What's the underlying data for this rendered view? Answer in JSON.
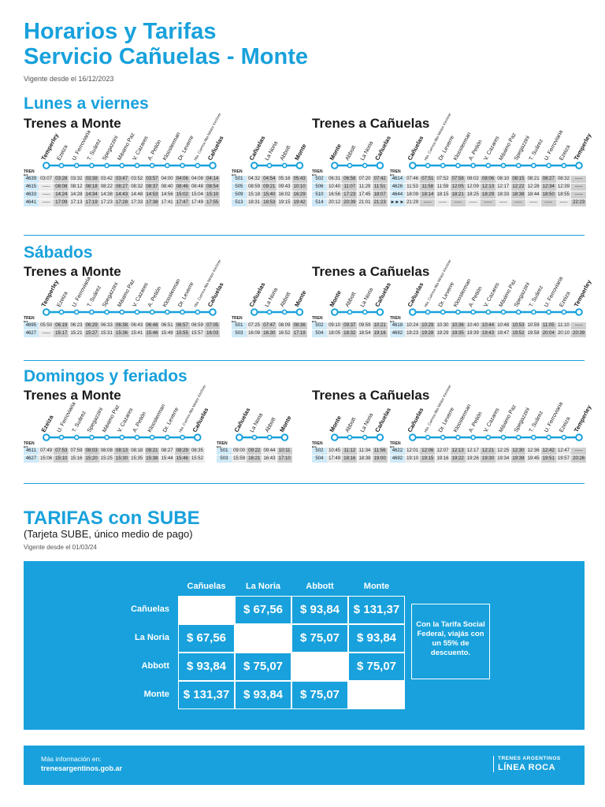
{
  "header": {
    "title_line1": "Horarios y Tarifas",
    "title_line2": "Servicio Cañuelas - Monte",
    "vigente": "Vigente desde el 16/12/2023"
  },
  "labels": {
    "tren": "TREN N°",
    "to_monte": "Trenes a Monte",
    "to_canuelas": "Trenes a Cañuelas"
  },
  "sections": [
    {
      "title": "Lunes a viernes",
      "monte": {
        "stations_a": [
          "Temperley",
          "Ezeiza",
          "U. Ferroviaria",
          "T. Suárez",
          "Spegazzini",
          "Máximo Paz",
          "V. Cazares",
          "A. Petión",
          "Kloosterman",
          "Dr. Leverre",
          "Hta. Cuenca Alta Néstor Kirchner",
          "Cañuelas"
        ],
        "bold_a": [
          0,
          11
        ],
        "rows_a": [
          [
            "4639",
            "03:07",
            "03:28",
            "03:32",
            "03:38",
            "03:42",
            "03:47",
            "03:52",
            "03:57",
            "04:00",
            "04:06",
            "04:08",
            "04:14"
          ],
          [
            "4615",
            "-----",
            "08:08",
            "08:12",
            "08:18",
            "08:22",
            "08:27",
            "08:32",
            "08:37",
            "08:40",
            "08:46",
            "08:48",
            "08:54"
          ],
          [
            "4633",
            "-----",
            "14:24",
            "14:28",
            "14:34",
            "14:38",
            "14:43",
            "14:48",
            "14:53",
            "14:56",
            "15:02",
            "15:04",
            "15:10"
          ],
          [
            "4641",
            "-----",
            "17:09",
            "17:13",
            "17:19",
            "17:23",
            "17:28",
            "17:33",
            "17:38",
            "17:41",
            "17:47",
            "17:49",
            "17:55"
          ]
        ],
        "stations_b": [
          "Cañuelas",
          "La Noria",
          "Abbott",
          "Monte"
        ],
        "bold_b": [
          0,
          3
        ],
        "rows_b": [
          [
            "501",
            "04:32",
            "04:54",
            "05:16",
            "05:43"
          ],
          [
            "505",
            "08:59",
            "09:21",
            "09:43",
            "10:10"
          ],
          [
            "509",
            "15:18",
            "15:40",
            "16:02",
            "16:29"
          ],
          [
            "513",
            "18:31",
            "18:53",
            "19:15",
            "19:42"
          ]
        ]
      },
      "canuelas": {
        "stations_a": [
          "Monte",
          "Abbott",
          "La Noria",
          "Cañuelas"
        ],
        "bold_a": [
          0,
          3
        ],
        "rows_a": [
          [
            "502",
            "06:31",
            "06:58",
            "07:20",
            "07:42"
          ],
          [
            "506",
            "10:40",
            "11:07",
            "11:29",
            "11:51"
          ],
          [
            "510",
            "16:56",
            "17:23",
            "17:45",
            "18:07"
          ],
          [
            "514",
            "20:12",
            "20:39",
            "21:01",
            "21:23"
          ]
        ],
        "stations_b": [
          "Cañuelas",
          "Hta. Cuenca Alta Néstor Kirchner",
          "Dr. Leverre",
          "Kloosterman",
          "A. Petión",
          "V. Cazares",
          "Máximo Paz",
          "Spegazzini",
          "T. Suárez",
          "U. Ferroviaria",
          "Ezeiza",
          "Temperley"
        ],
        "bold_b": [
          0,
          11
        ],
        "rows_b": [
          [
            "4614",
            "07:46",
            "07:51",
            "07:52",
            "07:58",
            "08:02",
            "08:06",
            "08:10",
            "08:15",
            "08:21",
            "08:27",
            "08:32",
            "-----"
          ],
          [
            "4626",
            "11:53",
            "11:58",
            "11:59",
            "12:05",
            "12:09",
            "12:13",
            "12:17",
            "12:22",
            "12:28",
            "12:34",
            "12:39",
            "-----"
          ],
          [
            "4644",
            "18:09",
            "18:14",
            "18:15",
            "18:21",
            "18:25",
            "18:29",
            "18:33",
            "18:38",
            "18:44",
            "18:50",
            "18:55",
            "-----"
          ],
          [
            "►►►",
            "21:29",
            "-----",
            "-----",
            "-----",
            "-----",
            "-----",
            "-----",
            "-----",
            "-----",
            "-----",
            "-----",
            "22:23"
          ]
        ]
      }
    },
    {
      "title": "Sábados",
      "monte": {
        "stations_a": [
          "Temperley",
          "Ezeiza",
          "U. Ferroviaria",
          "T. Suárez",
          "Spegazzini",
          "Máximo Paz",
          "V. Cazares",
          "A. Petión",
          "Kloosterman",
          "Dr. Leverre",
          "Hta. Cuenca Alta Néstor Kirchner",
          "Cañuelas"
        ],
        "bold_a": [
          0,
          11
        ],
        "rows_a": [
          [
            "4695",
            "05:50",
            "06:19",
            "06:23",
            "06:29",
            "06:33",
            "06:38",
            "06:43",
            "06:48",
            "06:51",
            "06:57",
            "06:59",
            "07:05"
          ],
          [
            "4627",
            "-----",
            "15:17",
            "15:21",
            "15:27",
            "15:31",
            "15:36",
            "15:41",
            "15:46",
            "15:49",
            "15:55",
            "15:57",
            "16:03"
          ]
        ],
        "stations_b": [
          "Cañuelas",
          "La Noria",
          "Abbott",
          "Monte"
        ],
        "bold_b": [
          0,
          3
        ],
        "rows_b": [
          [
            "501",
            "07:25",
            "07:47",
            "08:09",
            "08:36"
          ],
          [
            "503",
            "16:08",
            "16:30",
            "16:52",
            "17:19"
          ]
        ]
      },
      "canuelas": {
        "stations_a": [
          "Monte",
          "Abbott",
          "La Noria",
          "Cañuelas"
        ],
        "bold_a": [
          0,
          3
        ],
        "rows_a": [
          [
            "502",
            "09:10",
            "09:37",
            "09:59",
            "10:21"
          ],
          [
            "504",
            "18:05",
            "18:32",
            "18:54",
            "19:16"
          ]
        ],
        "stations_b": [
          "Cañuelas",
          "Hta. Cuenca Alta Néstor Kirchner",
          "Dr. Leverre",
          "Kloosterman",
          "A. Petión",
          "V. Cazares",
          "Máximo Paz",
          "Spegazzini",
          "T. Suárez",
          "U. Ferroviaria",
          "Ezeiza",
          "Temperley"
        ],
        "bold_b": [
          0,
          11
        ],
        "rows_b": [
          [
            "4618",
            "10:24",
            "10:29",
            "10:30",
            "10:36",
            "10:40",
            "10:44",
            "10:48",
            "10:53",
            "10:59",
            "11:05",
            "11:10",
            "-----"
          ],
          [
            "4692",
            "19:23",
            "19:28",
            "19:29",
            "19:35",
            "19:39",
            "19:43",
            "19:47",
            "19:52",
            "19:58",
            "20:04",
            "20:10",
            "20:39"
          ]
        ]
      }
    },
    {
      "title": "Domingos y feriados",
      "monte": {
        "stations_a": [
          "Ezeiza",
          "U. Ferroviaria",
          "T. Suárez",
          "Spegazzini",
          "Máximo Paz",
          "V. Cazares",
          "A. Petión",
          "Kloosterman",
          "Dr. Leverre",
          "Hta. Cuenca Alta Néstor Kirchner",
          "Cañuelas"
        ],
        "bold_a": [
          0,
          10
        ],
        "rows_a": [
          [
            "4611",
            "07:49",
            "07:53",
            "07:59",
            "08:03",
            "08:08",
            "08:13",
            "08:18",
            "08:21",
            "08:27",
            "08:29",
            "08:35"
          ],
          [
            "4627",
            "15:06",
            "15:10",
            "15:16",
            "15:20",
            "15:25",
            "15:30",
            "15:35",
            "15:38",
            "15:44",
            "15:46",
            "15:52"
          ]
        ],
        "stations_b": [
          "Cañuelas",
          "La Noria",
          "Abbott",
          "Monte"
        ],
        "bold_b": [
          0,
          3
        ],
        "rows_b": [
          [
            "501",
            "09:00",
            "09:22",
            "09:44",
            "10:11"
          ],
          [
            "503",
            "15:59",
            "16:21",
            "16:43",
            "17:10"
          ]
        ]
      },
      "canuelas": {
        "stations_a": [
          "Monte",
          "Abbott",
          "La Noria",
          "Cañuelas"
        ],
        "bold_a": [
          0,
          3
        ],
        "rows_a": [
          [
            "502",
            "10:45",
            "11:12",
            "11:34",
            "11:56"
          ],
          [
            "504",
            "17:49",
            "18:16",
            "18:38",
            "19:00"
          ]
        ],
        "stations_b": [
          "Cañuelas",
          "Hta. Cuenca Alta Néstor Kirchner",
          "Dr. Leverre",
          "Kloosterman",
          "A. Petión",
          "V. Cazares",
          "Máximo Paz",
          "Spegazzini",
          "T. Suárez",
          "U. Ferroviaria",
          "Ezeiza",
          "Temperley"
        ],
        "bold_b": [
          0,
          11
        ],
        "rows_b": [
          [
            "4622",
            "12:01",
            "12:06",
            "12:07",
            "12:13",
            "12:17",
            "12:21",
            "12:25",
            "12:30",
            "12:36",
            "12:42",
            "12:47",
            "-----"
          ],
          [
            "4692",
            "19:10",
            "19:15",
            "19:16",
            "19:22",
            "19:26",
            "19:30",
            "19:34",
            "19:39",
            "19:45",
            "19:51",
            "19:57",
            "20:26"
          ]
        ]
      }
    }
  ],
  "tarifas": {
    "title": "TARIFAS con SUBE",
    "subtitle": "(Tarjeta SUBE, único medio de pago)",
    "vigente": "Vigente desde el 01/03/24",
    "stations": [
      "Cañuelas",
      "La Noria",
      "Abbott",
      "Monte"
    ],
    "matrix": [
      [
        "",
        "$ 67,56",
        "$ 93,84",
        "$ 131,37"
      ],
      [
        "$ 67,56",
        "",
        "$ 75,07",
        "$ 93,84"
      ],
      [
        "$ 93,84",
        "$ 75,07",
        "",
        "$ 75,07"
      ],
      [
        "$ 131,37",
        "$ 93,84",
        "$ 75,07",
        ""
      ]
    ],
    "social_note": "Con la Tarifa Social Federal, viajás con un 55% de descuento."
  },
  "footer": {
    "info_label": "Más información en:",
    "website": "trenesargentinos.gob.ar",
    "brand_line1": "TRENES ARGENTINOS",
    "brand_line2": "LÍNEA ROCA"
  },
  "colors": {
    "accent": "#18a1dc",
    "cell_light": "#ececec",
    "cell_dark": "#cfcfcf",
    "cell_train": "#cfe9f7"
  }
}
